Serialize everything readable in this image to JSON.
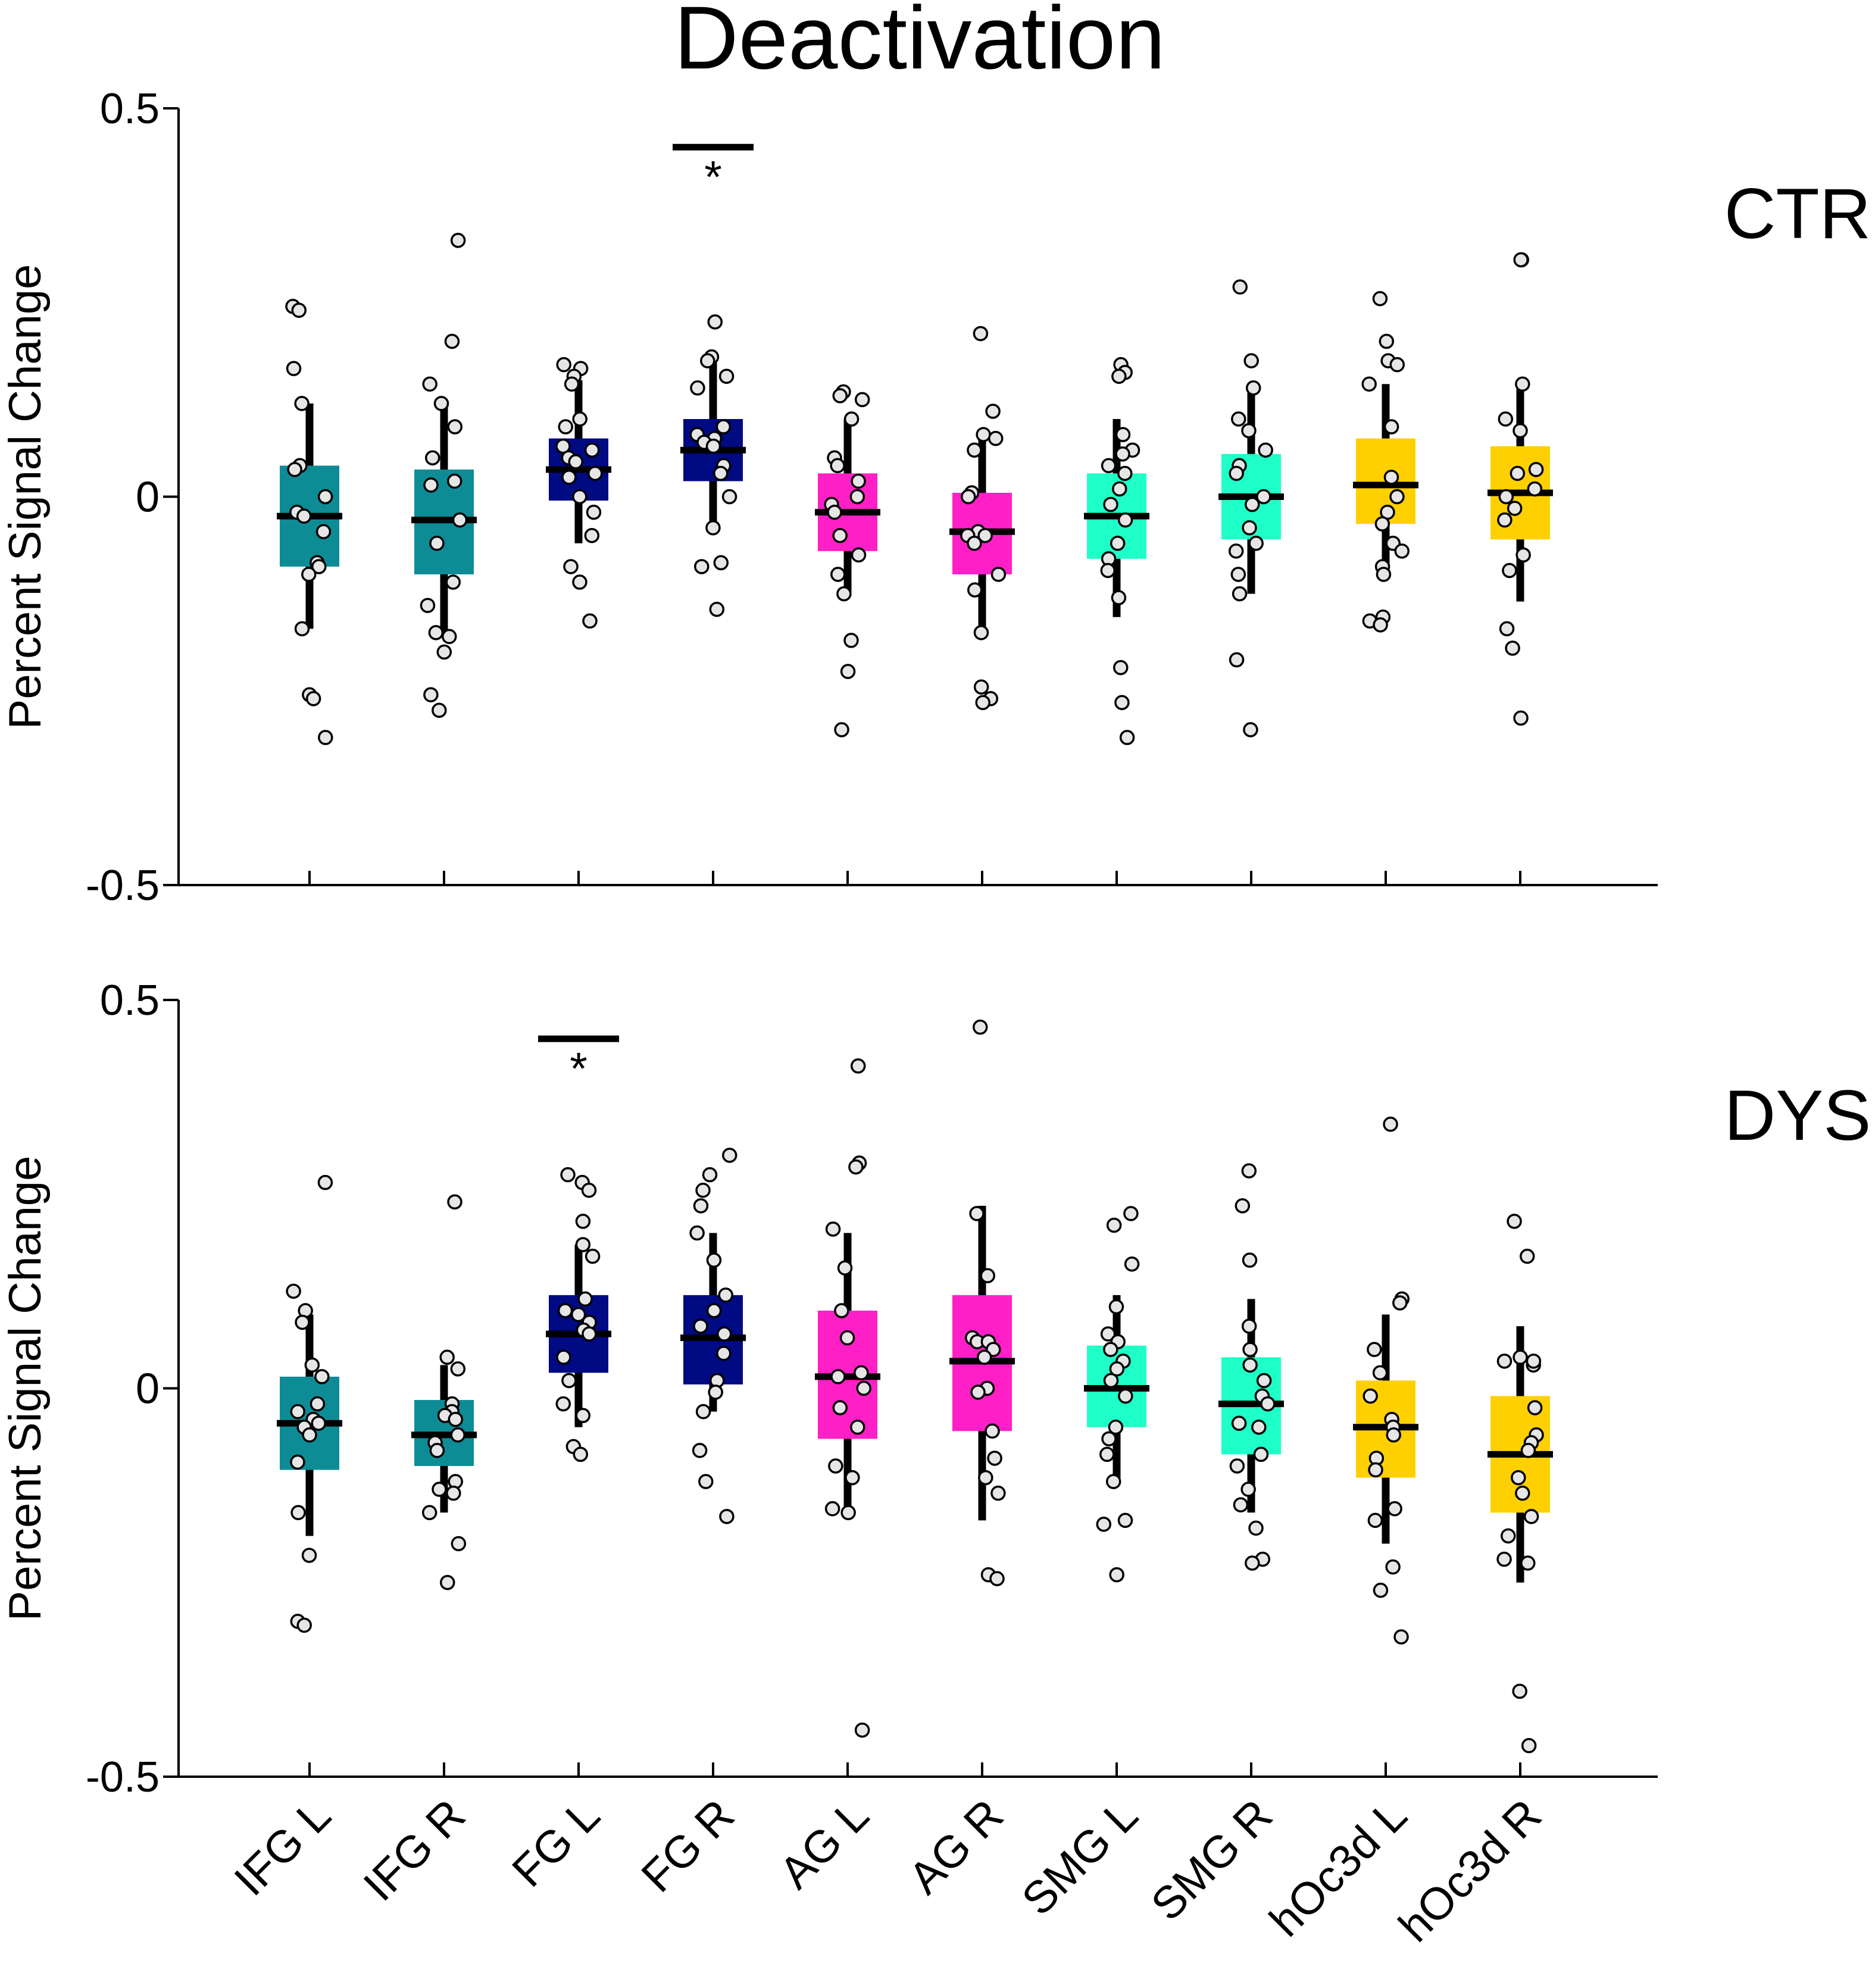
{
  "chart_data": {
    "type": "box",
    "title": "Deactivation",
    "ylabel": "Percent Signal Change",
    "ylim": [
      -0.5,
      0.5
    ],
    "yticks": [
      -0.5,
      0,
      0.5
    ],
    "ytick_labels": [
      "-0.5",
      "0",
      "0.5"
    ],
    "categories": [
      "IFG L",
      "IFG R",
      "FG L",
      "FG R",
      "AG L",
      "AG R",
      "SMG L",
      "SMG R",
      "hOc3d L",
      "hOc3d R"
    ],
    "category_colors": [
      "#0E8C96",
      "#0E8C96",
      "#000A82",
      "#000A82",
      "#FF1FC6",
      "#FF1FC6",
      "#1FFFC8",
      "#1FFFC8",
      "#FFD000",
      "#FFD000"
    ],
    "panels": [
      {
        "group": "CTR",
        "significance": {
          "category": "FG R",
          "label": "*"
        },
        "boxes": [
          {
            "category": "IFG L",
            "median": -0.025,
            "q1": -0.09,
            "q3": 0.04,
            "whisker_low": -0.17,
            "whisker_high": 0.12,
            "points": [
              0.245,
              0.24,
              0.165,
              0.12,
              0.04,
              0.035,
              0.0,
              -0.02,
              -0.025,
              -0.045,
              -0.085,
              -0.09,
              -0.1,
              -0.17,
              -0.255,
              -0.26,
              -0.31
            ]
          },
          {
            "category": "IFG R",
            "median": -0.03,
            "q1": -0.1,
            "q3": 0.035,
            "whisker_low": -0.18,
            "whisker_high": 0.115,
            "points": [
              0.33,
              0.2,
              0.145,
              0.12,
              0.09,
              0.05,
              0.02,
              0.015,
              -0.03,
              -0.06,
              -0.11,
              -0.14,
              -0.175,
              -0.18,
              -0.2,
              -0.255,
              -0.275
            ]
          },
          {
            "category": "FG L",
            "median": 0.035,
            "q1": -0.005,
            "q3": 0.075,
            "whisker_low": -0.06,
            "whisker_high": 0.15,
            "points": [
              0.17,
              0.165,
              0.155,
              0.145,
              0.1,
              0.09,
              0.065,
              0.06,
              0.05,
              0.045,
              0.03,
              0.025,
              0.0,
              -0.02,
              -0.05,
              -0.09,
              -0.11,
              -0.16
            ]
          },
          {
            "category": "FG R",
            "median": 0.06,
            "q1": 0.02,
            "q3": 0.1,
            "whisker_low": -0.04,
            "whisker_high": 0.18,
            "points": [
              0.225,
              0.18,
              0.175,
              0.155,
              0.14,
              0.09,
              0.08,
              0.075,
              0.07,
              0.065,
              0.04,
              0.03,
              0.0,
              -0.04,
              -0.085,
              -0.09,
              -0.145
            ]
          },
          {
            "category": "AG L",
            "median": -0.02,
            "q1": -0.07,
            "q3": 0.03,
            "whisker_low": -0.125,
            "whisker_high": 0.1,
            "points": [
              0.135,
              0.13,
              0.125,
              0.1,
              0.05,
              0.04,
              0.02,
              0.0,
              -0.01,
              -0.02,
              -0.05,
              -0.075,
              -0.1,
              -0.125,
              -0.185,
              -0.225,
              -0.3
            ]
          },
          {
            "category": "AG R",
            "median": -0.045,
            "q1": -0.1,
            "q3": 0.005,
            "whisker_low": -0.175,
            "whisker_high": 0.08,
            "points": [
              0.21,
              0.11,
              0.08,
              0.075,
              0.06,
              0.005,
              0.0,
              -0.045,
              -0.05,
              -0.05,
              -0.06,
              -0.1,
              -0.12,
              -0.175,
              -0.245,
              -0.26,
              -0.265
            ]
          },
          {
            "category": "SMG L",
            "median": -0.025,
            "q1": -0.08,
            "q3": 0.03,
            "whisker_low": -0.155,
            "whisker_high": 0.1,
            "points": [
              0.17,
              0.16,
              0.155,
              0.08,
              0.06,
              0.055,
              0.04,
              0.03,
              0.01,
              -0.01,
              -0.03,
              -0.06,
              -0.08,
              -0.095,
              -0.13,
              -0.22,
              -0.265,
              -0.31
            ]
          },
          {
            "category": "SMG R",
            "median": 0.0,
            "q1": -0.055,
            "q3": 0.055,
            "whisker_low": -0.125,
            "whisker_high": 0.135,
            "points": [
              0.27,
              0.175,
              0.14,
              0.1,
              0.085,
              0.06,
              0.04,
              0.03,
              0.0,
              -0.01,
              -0.04,
              -0.06,
              -0.07,
              -0.1,
              -0.125,
              -0.21,
              -0.3
            ]
          },
          {
            "category": "hOc3d L",
            "median": 0.015,
            "q1": -0.035,
            "q3": 0.075,
            "whisker_low": -0.105,
            "whisker_high": 0.145,
            "points": [
              0.255,
              0.2,
              0.175,
              0.17,
              0.145,
              0.09,
              0.025,
              0.0,
              -0.02,
              -0.035,
              -0.06,
              -0.07,
              -0.09,
              -0.1,
              -0.155,
              -0.16,
              -0.165
            ]
          },
          {
            "category": "hOc3d R",
            "median": 0.005,
            "q1": -0.055,
            "q3": 0.065,
            "whisker_low": -0.135,
            "whisker_high": 0.15,
            "points": [
              0.305,
              0.305,
              0.145,
              0.1,
              0.085,
              0.035,
              0.03,
              0.01,
              0.0,
              -0.015,
              -0.03,
              -0.075,
              -0.095,
              -0.17,
              -0.195,
              -0.285
            ]
          }
        ]
      },
      {
        "group": "DYS",
        "significance": {
          "category": "FG L",
          "label": "*"
        },
        "boxes": [
          {
            "category": "IFG L",
            "median": -0.045,
            "q1": -0.105,
            "q3": 0.015,
            "whisker_low": -0.19,
            "whisker_high": 0.095,
            "points": [
              0.265,
              0.125,
              0.1,
              0.085,
              0.03,
              0.015,
              -0.02,
              -0.03,
              -0.04,
              -0.045,
              -0.05,
              -0.06,
              -0.095,
              -0.16,
              -0.215,
              -0.3,
              -0.305
            ]
          },
          {
            "category": "IFG R",
            "median": -0.06,
            "q1": -0.1,
            "q3": -0.015,
            "whisker_low": -0.16,
            "whisker_high": 0.03,
            "points": [
              0.24,
              0.04,
              0.025,
              -0.02,
              -0.03,
              -0.035,
              -0.04,
              -0.06,
              -0.07,
              -0.08,
              -0.12,
              -0.13,
              -0.135,
              -0.16,
              -0.2,
              -0.25
            ]
          },
          {
            "category": "FG L",
            "median": 0.07,
            "q1": 0.02,
            "q3": 0.12,
            "whisker_low": -0.05,
            "whisker_high": 0.185,
            "points": [
              0.275,
              0.265,
              0.255,
              0.215,
              0.185,
              0.17,
              0.115,
              0.1,
              0.095,
              0.085,
              0.075,
              0.07,
              0.04,
              0.01,
              -0.02,
              -0.035,
              -0.075,
              -0.085
            ]
          },
          {
            "category": "FG R",
            "median": 0.065,
            "q1": 0.005,
            "q3": 0.12,
            "whisker_low": -0.03,
            "whisker_high": 0.2,
            "points": [
              0.3,
              0.275,
              0.255,
              0.235,
              0.2,
              0.165,
              0.12,
              0.1,
              0.08,
              0.07,
              0.045,
              0.01,
              -0.005,
              -0.03,
              -0.08,
              -0.12,
              -0.165
            ]
          },
          {
            "category": "AG L",
            "median": 0.015,
            "q1": -0.065,
            "q3": 0.1,
            "whisker_low": -0.165,
            "whisker_high": 0.2,
            "points": [
              0.415,
              0.29,
              0.285,
              0.205,
              0.155,
              0.1,
              0.065,
              0.02,
              0.015,
              0.0,
              -0.025,
              -0.05,
              -0.1,
              -0.115,
              -0.155,
              -0.16,
              -0.44
            ]
          },
          {
            "category": "AG R",
            "median": 0.035,
            "q1": -0.055,
            "q3": 0.12,
            "whisker_low": -0.17,
            "whisker_high": 0.235,
            "points": [
              0.465,
              0.225,
              0.145,
              0.065,
              0.06,
              0.06,
              0.05,
              0.04,
              0.0,
              -0.005,
              -0.055,
              -0.09,
              -0.115,
              -0.135,
              -0.24,
              -0.245
            ]
          },
          {
            "category": "SMG L",
            "median": 0.0,
            "q1": -0.05,
            "q3": 0.055,
            "whisker_low": -0.12,
            "whisker_high": 0.12,
            "points": [
              0.225,
              0.21,
              0.16,
              0.105,
              0.07,
              0.06,
              0.05,
              0.035,
              0.025,
              0.01,
              -0.01,
              -0.05,
              -0.065,
              -0.085,
              -0.12,
              -0.17,
              -0.175,
              -0.24
            ]
          },
          {
            "category": "SMG R",
            "median": -0.02,
            "q1": -0.085,
            "q3": 0.04,
            "whisker_low": -0.16,
            "whisker_high": 0.115,
            "points": [
              0.28,
              0.235,
              0.165,
              0.08,
              0.05,
              0.03,
              0.01,
              -0.01,
              -0.02,
              -0.045,
              -0.05,
              -0.085,
              -0.1,
              -0.13,
              -0.15,
              -0.18,
              -0.22,
              -0.225
            ]
          },
          {
            "category": "hOc3d L",
            "median": -0.05,
            "q1": -0.115,
            "q3": 0.01,
            "whisker_low": -0.2,
            "whisker_high": 0.095,
            "points": [
              0.34,
              0.115,
              0.11,
              0.05,
              0.02,
              -0.01,
              -0.04,
              -0.05,
              -0.06,
              -0.09,
              -0.105,
              -0.155,
              -0.17,
              -0.23,
              -0.26,
              -0.32
            ]
          },
          {
            "category": "hOc3d R",
            "median": -0.085,
            "q1": -0.16,
            "q3": -0.01,
            "whisker_low": -0.25,
            "whisker_high": 0.08,
            "points": [
              0.215,
              0.17,
              0.04,
              0.035,
              0.03,
              0.035,
              -0.025,
              -0.06,
              -0.07,
              -0.08,
              -0.115,
              -0.135,
              -0.165,
              -0.19,
              -0.22,
              -0.225,
              -0.39,
              -0.46
            ]
          }
        ]
      }
    ]
  }
}
